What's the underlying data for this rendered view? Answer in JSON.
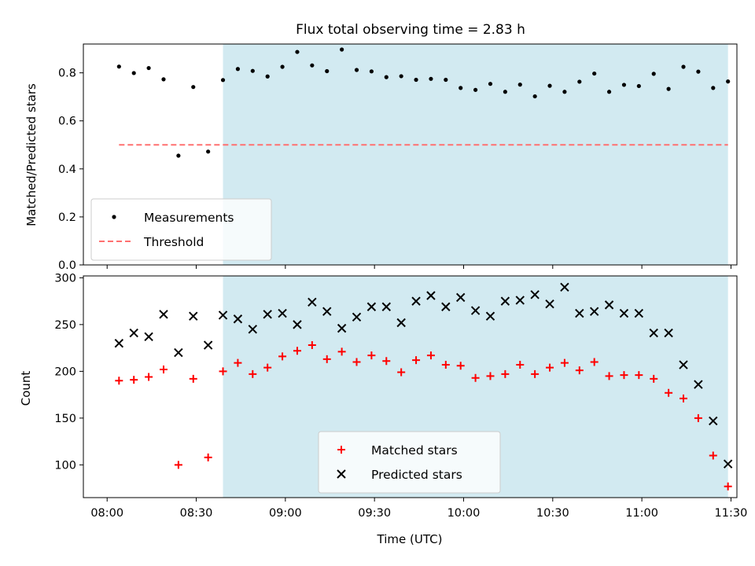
{
  "title": "Flux total observing time = 2.83 h",
  "colors": {
    "shade": "#ADD8E6",
    "measurement": "#000000",
    "threshold": "#FF7070",
    "matched": "#FF0000",
    "predicted": "#000000"
  },
  "x_axis": {
    "label": "Time (UTC)",
    "tick_labels": [
      "08:00",
      "08:30",
      "09:00",
      "09:30",
      "10:00",
      "10:30",
      "11:00",
      "11:30"
    ]
  },
  "chart_data": [
    {
      "type": "scatter",
      "ylabel": "Matched/Predicted stars",
      "xlim": [
        "07:52",
        "11:32"
      ],
      "ylim": [
        0,
        0.92
      ],
      "yticks": [
        "0.0",
        "0.2",
        "0.4",
        "0.6",
        "0.8"
      ],
      "grid": false,
      "legend": "lower-left",
      "shaded_region": [
        "08:39",
        "11:29"
      ],
      "threshold": {
        "name": "Threshold",
        "y": 0.5,
        "x_range": [
          "08:04",
          "11:29"
        ],
        "style": "dashed"
      },
      "series": [
        {
          "name": "Measurements",
          "x": [
            "08:04",
            "08:09",
            "08:14",
            "08:19",
            "08:24",
            "08:29",
            "08:34",
            "08:39",
            "08:44",
            "08:49",
            "08:54",
            "08:59",
            "09:04",
            "09:09",
            "09:14",
            "09:19",
            "09:24",
            "09:29",
            "09:34",
            "09:39",
            "09:44",
            "09:49",
            "09:54",
            "09:59",
            "10:04",
            "10:09",
            "10:14",
            "10:19",
            "10:24",
            "10:29",
            "10:34",
            "10:39",
            "10:44",
            "10:49",
            "10:54",
            "10:59",
            "11:04",
            "11:09",
            "11:14",
            "11:19",
            "11:24",
            "11:29"
          ],
          "y": [
            0.826,
            0.799,
            0.82,
            0.773,
            0.455,
            0.741,
            0.472,
            0.77,
            0.816,
            0.808,
            0.785,
            0.825,
            0.887,
            0.831,
            0.807,
            0.897,
            0.812,
            0.806,
            0.782,
            0.786,
            0.771,
            0.775,
            0.771,
            0.737,
            0.729,
            0.754,
            0.721,
            0.751,
            0.702,
            0.746,
            0.721,
            0.763,
            0.797,
            0.721,
            0.75,
            0.745,
            0.796,
            0.733,
            0.825,
            0.805,
            0.737,
            0.764
          ]
        }
      ]
    },
    {
      "type": "scatter",
      "ylabel": "Count",
      "xlabel": "Time (UTC)",
      "xlim": [
        "07:52",
        "11:32"
      ],
      "ylim": [
        65,
        302
      ],
      "yticks": [
        "100",
        "150",
        "200",
        "250",
        "300"
      ],
      "grid": false,
      "legend": "lower-center",
      "shaded_region": [
        "08:39",
        "11:29"
      ],
      "series": [
        {
          "name": "Matched stars",
          "marker": "plus",
          "x": [
            "08:04",
            "08:09",
            "08:14",
            "08:19",
            "08:24",
            "08:29",
            "08:34",
            "08:39",
            "08:44",
            "08:49",
            "08:54",
            "08:59",
            "09:04",
            "09:09",
            "09:14",
            "09:19",
            "09:24",
            "09:29",
            "09:34",
            "09:39",
            "09:44",
            "09:49",
            "09:54",
            "09:59",
            "10:04",
            "10:09",
            "10:14",
            "10:19",
            "10:24",
            "10:29",
            "10:34",
            "10:39",
            "10:44",
            "10:49",
            "10:54",
            "10:59",
            "11:04",
            "11:09",
            "11:14",
            "11:19",
            "11:24",
            "11:29"
          ],
          "y": [
            190,
            191,
            194,
            202,
            100,
            192,
            108,
            200,
            209,
            197,
            204,
            216,
            222,
            228,
            213,
            221,
            210,
            217,
            211,
            199,
            212,
            217,
            207,
            206,
            193,
            195,
            197,
            207,
            197,
            204,
            209,
            201,
            210,
            195,
            196,
            196,
            192,
            177,
            171,
            150,
            110,
            77
          ]
        },
        {
          "name": "Predicted stars",
          "marker": "x",
          "x": [
            "08:04",
            "08:09",
            "08:14",
            "08:19",
            "08:24",
            "08:29",
            "08:34",
            "08:39",
            "08:44",
            "08:49",
            "08:54",
            "08:59",
            "09:04",
            "09:09",
            "09:14",
            "09:19",
            "09:24",
            "09:29",
            "09:34",
            "09:39",
            "09:44",
            "09:49",
            "09:54",
            "09:59",
            "10:04",
            "10:09",
            "10:14",
            "10:19",
            "10:24",
            "10:29",
            "10:34",
            "10:39",
            "10:44",
            "10:49",
            "10:54",
            "10:59",
            "11:04",
            "11:09",
            "11:14",
            "11:19",
            "11:24",
            "11:29"
          ],
          "y": [
            230,
            241,
            237,
            261,
            220,
            259,
            228,
            260,
            256,
            245,
            261,
            262,
            250,
            274,
            264,
            246,
            258,
            269,
            269,
            252,
            275,
            281,
            269,
            279,
            265,
            259,
            275,
            276,
            282,
            272,
            290,
            262,
            264,
            271,
            262,
            262,
            241,
            241,
            207,
            186,
            147,
            101
          ]
        }
      ]
    }
  ]
}
